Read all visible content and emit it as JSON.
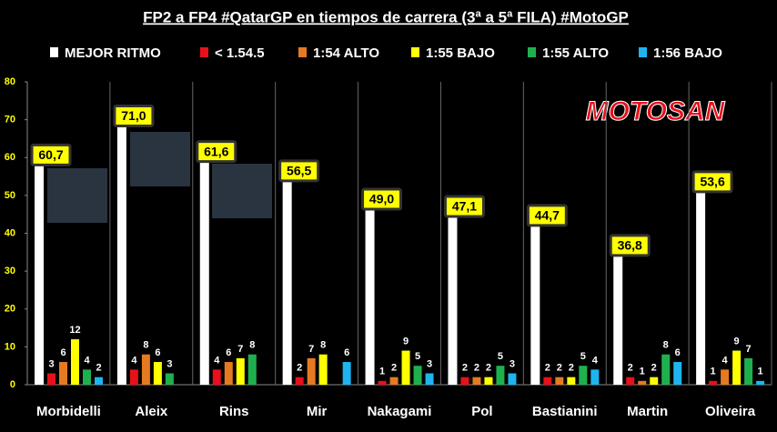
{
  "chart_data": {
    "type": "bar",
    "title": "FP2 a FP4 #QatarGP en tiempos de carrera (3ª a 5ª FILA) #MotoGP",
    "logo": "MOTOSAN",
    "categories": [
      "Morbidelli",
      "Aleix",
      "Rins",
      "Mir",
      "Nakagami",
      "Pol",
      "Bastianini",
      "Martin",
      "Oliveira"
    ],
    "series": [
      {
        "name": "MEJOR RITMO",
        "color": "#ffffff",
        "values": [
          60.7,
          71.0,
          61.6,
          56.5,
          49.0,
          47.1,
          44.7,
          36.8,
          53.6
        ],
        "value_labels": [
          "60,7",
          "71,0",
          "61,6",
          "56,5",
          "49,0",
          "47,1",
          "44,7",
          "36,8",
          "53,6"
        ]
      },
      {
        "name": "< 1.54.5",
        "color": "#e8101a",
        "values": [
          3,
          4,
          4,
          2,
          1,
          2,
          2,
          2,
          1
        ]
      },
      {
        "name": "1:54 ALTO",
        "color": "#e57a22",
        "values": [
          6,
          8,
          6,
          7,
          2,
          2,
          2,
          1,
          4
        ]
      },
      {
        "name": "1:55 BAJO",
        "color": "#ffff00",
        "values": [
          12,
          6,
          7,
          8,
          9,
          2,
          2,
          2,
          9
        ]
      },
      {
        "name": "1:55 ALTO",
        "color": "#1fb04e",
        "values": [
          4,
          3,
          8,
          null,
          5,
          5,
          5,
          8,
          7
        ]
      },
      {
        "name": "1:56 BAJO",
        "color": "#1eb4ef",
        "values": [
          2,
          null,
          null,
          6,
          3,
          3,
          4,
          6,
          1
        ]
      }
    ],
    "ylim": [
      0,
      80
    ],
    "yticks": [
      0,
      10,
      20,
      30,
      40,
      50,
      60,
      70,
      80
    ],
    "grid": true
  }
}
